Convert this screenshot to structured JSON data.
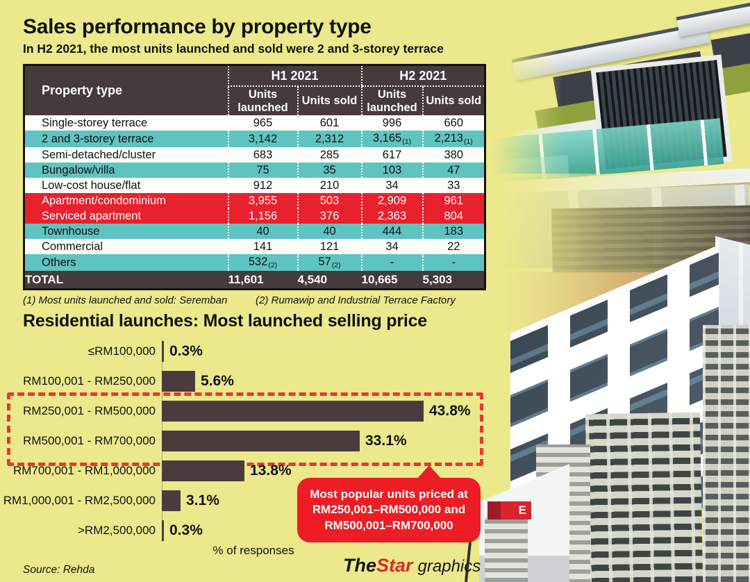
{
  "header": {
    "title": "Sales performance by property type",
    "subtitle": "In H2 2021, the most units launched and sold were 2 and 3-storey terrace"
  },
  "table": {
    "property_col_header": "Property type",
    "group_cols": [
      "H1 2021",
      "H2 2021"
    ],
    "sub_cols": [
      "Units launched",
      "Units sold",
      "Units launched",
      "Units sold"
    ],
    "rows": [
      {
        "label": "Single-storey terrace",
        "cells": [
          "965",
          "601",
          "996",
          "660"
        ],
        "markers": [
          "",
          "",
          "",
          ""
        ],
        "variant": "plain"
      },
      {
        "label": "2 and 3-storey terrace",
        "cells": [
          "3,142",
          "2,312",
          "3,165",
          "2,213"
        ],
        "markers": [
          "",
          "",
          "(1)",
          "(1)"
        ],
        "variant": "teal"
      },
      {
        "label": "Semi-detached/cluster",
        "cells": [
          "683",
          "285",
          "617",
          "380"
        ],
        "markers": [
          "",
          "",
          "",
          ""
        ],
        "variant": "plain"
      },
      {
        "label": "Bungalow/villa",
        "cells": [
          "75",
          "35",
          "103",
          "47"
        ],
        "markers": [
          "",
          "",
          "",
          ""
        ],
        "variant": "teal"
      },
      {
        "label": "Low-cost house/flat",
        "cells": [
          "912",
          "210",
          "34",
          "33"
        ],
        "markers": [
          "",
          "",
          "",
          ""
        ],
        "variant": "plain"
      },
      {
        "label": "Apartment/condominium",
        "cells": [
          "3,955",
          "503",
          "2,909",
          "961"
        ],
        "markers": [
          "",
          "",
          "",
          ""
        ],
        "variant": "red"
      },
      {
        "label": "Serviced apartment",
        "cells": [
          "1,156",
          "376",
          "2,363",
          "804"
        ],
        "markers": [
          "",
          "",
          "",
          ""
        ],
        "variant": "red"
      },
      {
        "label": "Townhouse",
        "cells": [
          "40",
          "40",
          "444",
          "183"
        ],
        "markers": [
          "",
          "",
          "",
          ""
        ],
        "variant": "teal"
      },
      {
        "label": "Commercial",
        "cells": [
          "141",
          "121",
          "34",
          "22"
        ],
        "markers": [
          "",
          "",
          "",
          ""
        ],
        "variant": "plain"
      },
      {
        "label": "Others",
        "cells": [
          "532",
          "57",
          "-",
          "-"
        ],
        "markers": [
          "(2)",
          "(2)",
          "",
          ""
        ],
        "variant": "teal"
      }
    ],
    "total_row": {
      "label": "TOTAL",
      "cells": [
        "11,601",
        "4,540",
        "10,665",
        "5,303"
      ]
    },
    "footnote1": "(1) Most units launched and sold: Seremban",
    "footnote2": "(2) Rumawip and Industrial Terrace Factory"
  },
  "chart_data": {
    "type": "bar",
    "orientation": "horizontal",
    "title": "Residential launches: Most launched selling price",
    "categories": [
      "≤RM100,000",
      "RM100,001 - RM250,000",
      "RM250,001 - RM500,000",
      "RM500,001 - RM700,000",
      "RM700,001 - RM1,000,000",
      "RM1,000,001 - RM2,500,000",
      ">RM2,500,000"
    ],
    "values": [
      0.3,
      5.6,
      43.8,
      33.1,
      13.8,
      3.1,
      0.3
    ],
    "value_labels": [
      "0.3%",
      "5.6%",
      "43.8%",
      "33.1%",
      "13.8%",
      "3.1%",
      "0.3%"
    ],
    "xlabel": "% of responses",
    "xlim": [
      0,
      45
    ],
    "grid": false,
    "highlighted_categories": [
      "RM250,001 - RM500,000",
      "RM500,001 - RM700,000"
    ],
    "callout": {
      "line1": "Most popular units priced at",
      "line2": "RM250,001–RM500,000 and",
      "line3": "RM500,001–RM700,000"
    },
    "bar_color": "#4a3c3e",
    "highlight_border_color": "#e8392c"
  },
  "collage": {
    "sign_label": "E"
  },
  "footer": {
    "source": "Source: Rehda",
    "brand_the": "The",
    "brand_star": "Star",
    "brand_graphics": "graphics"
  },
  "colors": {
    "background": "#ece98c",
    "table_header_bg": "#453a3c",
    "row_teal": "#5fc4c1",
    "row_red": "#e8212e",
    "total_bg": "#453a3c",
    "bar": "#4a3c3e",
    "callout_red": "#ee1c25",
    "dashed_red": "#e8392c"
  }
}
